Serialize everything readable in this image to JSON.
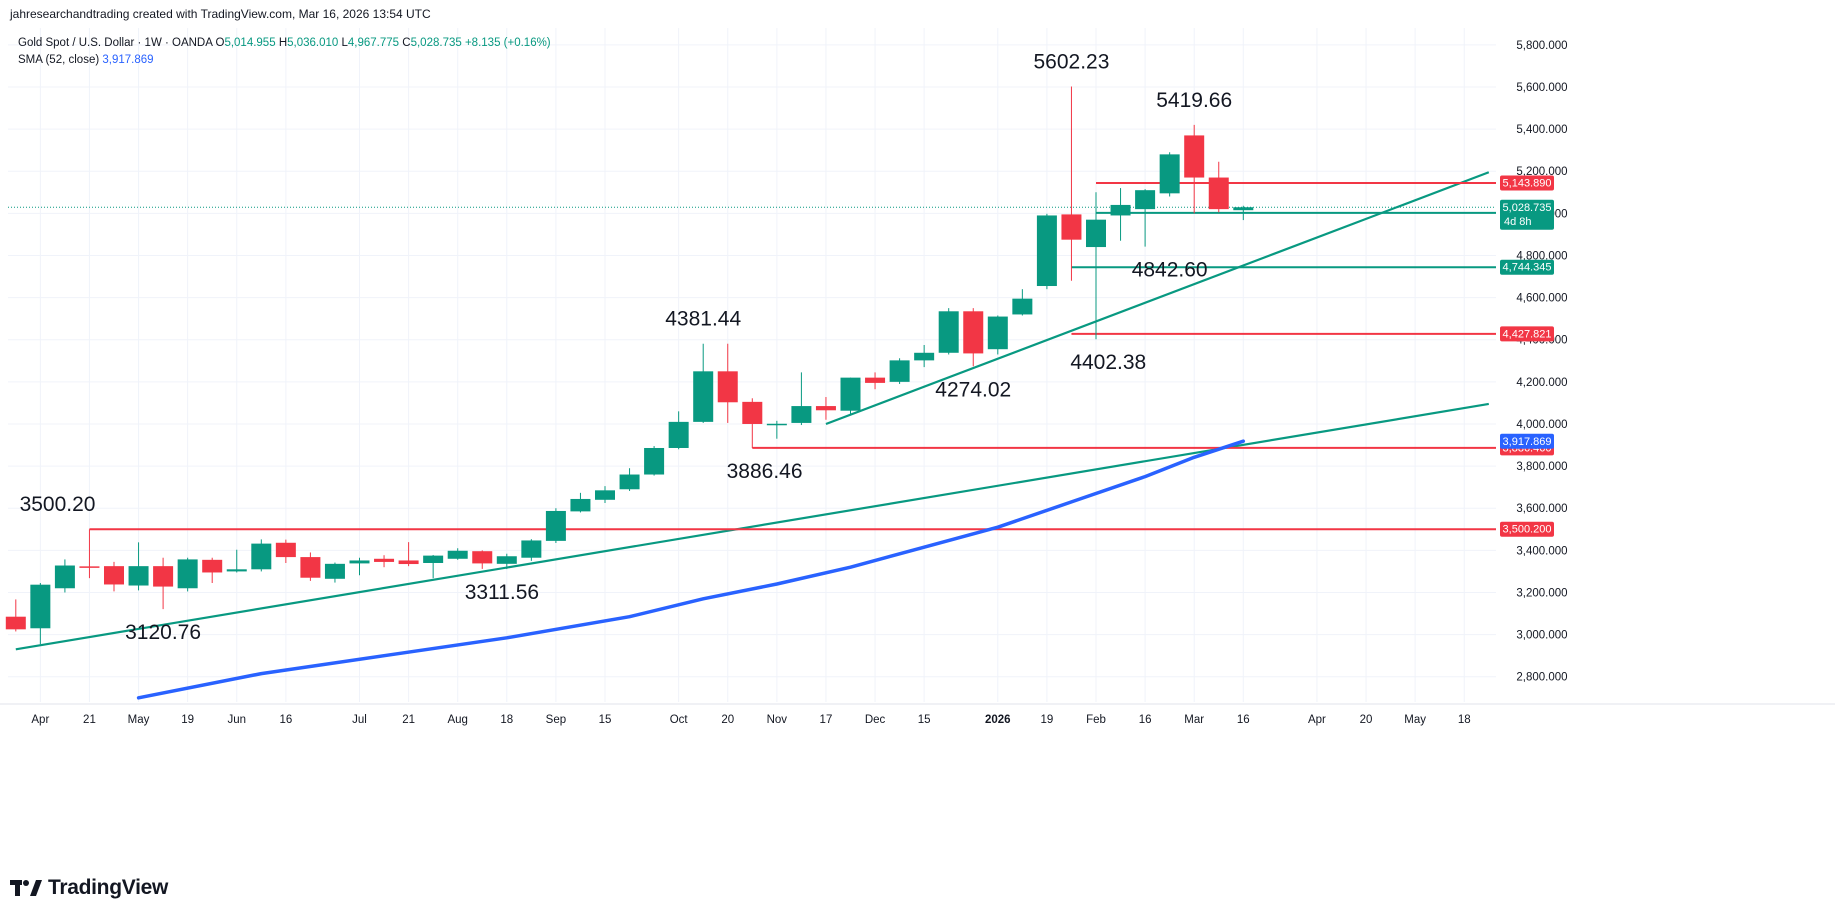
{
  "header": {
    "credit": "jahresearchandtrading created with TradingView.com, Mar 16, 2026 13:54 UTC"
  },
  "legend": {
    "symbol": "Gold Spot / U.S. Dollar · 1W · OANDA",
    "o_label": "O",
    "o": "5,014.955",
    "h_label": "H",
    "h": "5,036.010",
    "l_label": "L",
    "l": "4,967.775",
    "c_label": "C",
    "c": "5,028.735",
    "change": "+8.135 (+0.16%)",
    "sma_label": "SMA (52, close)",
    "sma": "3,917.869"
  },
  "brand": {
    "name": "TradingView"
  },
  "colors": {
    "up": "#089981",
    "down": "#f23645",
    "sma": "#2962ff",
    "trend": "#089981",
    "grid": "#f0f3fa",
    "text": "#131722"
  },
  "chart_data": {
    "type": "candlestick",
    "ylim": [
      2680,
      5880
    ],
    "y_ticks": [
      2800,
      3000,
      3200,
      3400,
      3600,
      3800,
      4000,
      4200,
      4400,
      4600,
      4800,
      5000,
      5200,
      5400,
      5600,
      5800
    ],
    "y_tick_labels": [
      "2,800.000",
      "3,000.000",
      "3,200.000",
      "3,400.000",
      "3,600.000",
      "3,800.000",
      "4,000.000",
      "4,200.000",
      "4,400.000",
      "4,600.000",
      "4,800.000",
      "5,000.000",
      "5,200.000",
      "5,400.000",
      "5,600.000",
      "5,800.000"
    ],
    "x_ticks": [
      {
        "label": "Apr",
        "week": 1
      },
      {
        "label": "21",
        "week": 3
      },
      {
        "label": "May",
        "week": 5
      },
      {
        "label": "19",
        "week": 7
      },
      {
        "label": "Jun",
        "week": 9
      },
      {
        "label": "16",
        "week": 11
      },
      {
        "label": "Jul",
        "week": 14
      },
      {
        "label": "21",
        "week": 16
      },
      {
        "label": "Aug",
        "week": 18
      },
      {
        "label": "18",
        "week": 20
      },
      {
        "label": "Sep",
        "week": 22
      },
      {
        "label": "15",
        "week": 24
      },
      {
        "label": "Oct",
        "week": 27
      },
      {
        "label": "20",
        "week": 29
      },
      {
        "label": "Nov",
        "week": 31
      },
      {
        "label": "17",
        "week": 33
      },
      {
        "label": "Dec",
        "week": 35
      },
      {
        "label": "15",
        "week": 37
      },
      {
        "label": "2026",
        "week": 40,
        "bold": true
      },
      {
        "label": "19",
        "week": 42
      },
      {
        "label": "Feb",
        "week": 44
      },
      {
        "label": "16",
        "week": 46
      },
      {
        "label": "Mar",
        "week": 48
      },
      {
        "label": "16",
        "week": 50
      },
      {
        "label": "Apr",
        "week": 53
      },
      {
        "label": "20",
        "week": 55
      },
      {
        "label": "May",
        "week": 57
      },
      {
        "label": "18",
        "week": 59
      }
    ],
    "candles": [
      {
        "week": 0,
        "o": 3085,
        "h": 3167,
        "l": 3015,
        "c": 3025
      },
      {
        "week": 1,
        "o": 3030,
        "h": 3245,
        "l": 2955,
        "c": 3237
      },
      {
        "week": 2,
        "o": 3220,
        "h": 3357,
        "l": 3200,
        "c": 3328
      },
      {
        "week": 3,
        "o": 3324,
        "h": 3500,
        "l": 3268,
        "c": 3318
      },
      {
        "week": 4,
        "o": 3325,
        "h": 3345,
        "l": 3205,
        "c": 3238
      },
      {
        "week": 5,
        "o": 3233,
        "h": 3438,
        "l": 3210,
        "c": 3325
      },
      {
        "week": 6,
        "o": 3325,
        "h": 3365,
        "l": 3121,
        "c": 3228
      },
      {
        "week": 7,
        "o": 3220,
        "h": 3365,
        "l": 3205,
        "c": 3357
      },
      {
        "week": 8,
        "o": 3355,
        "h": 3365,
        "l": 3245,
        "c": 3295
      },
      {
        "week": 9,
        "o": 3300,
        "h": 3403,
        "l": 3295,
        "c": 3310
      },
      {
        "week": 10,
        "o": 3310,
        "h": 3452,
        "l": 3300,
        "c": 3432
      },
      {
        "week": 11,
        "o": 3436,
        "h": 3451,
        "l": 3340,
        "c": 3368
      },
      {
        "week": 12,
        "o": 3368,
        "h": 3390,
        "l": 3255,
        "c": 3270
      },
      {
        "week": 13,
        "o": 3265,
        "h": 3342,
        "l": 3247,
        "c": 3336
      },
      {
        "week": 14,
        "o": 3338,
        "h": 3365,
        "l": 3282,
        "c": 3352
      },
      {
        "week": 15,
        "o": 3360,
        "h": 3377,
        "l": 3320,
        "c": 3345
      },
      {
        "week": 16,
        "o": 3352,
        "h": 3439,
        "l": 3325,
        "c": 3335
      },
      {
        "week": 17,
        "o": 3340,
        "h": 3378,
        "l": 3268,
        "c": 3375
      },
      {
        "week": 18,
        "o": 3360,
        "h": 3410,
        "l": 3355,
        "c": 3398
      },
      {
        "week": 19,
        "o": 3396,
        "h": 3400,
        "l": 3312,
        "c": 3338
      },
      {
        "week": 20,
        "o": 3336,
        "h": 3384,
        "l": 3311,
        "c": 3372
      },
      {
        "week": 21,
        "o": 3365,
        "h": 3453,
        "l": 3350,
        "c": 3447
      },
      {
        "week": 22,
        "o": 3445,
        "h": 3600,
        "l": 3435,
        "c": 3587
      },
      {
        "week": 23,
        "o": 3585,
        "h": 3673,
        "l": 3580,
        "c": 3644
      },
      {
        "week": 24,
        "o": 3640,
        "h": 3705,
        "l": 3625,
        "c": 3685
      },
      {
        "week": 25,
        "o": 3690,
        "h": 3790,
        "l": 3682,
        "c": 3760
      },
      {
        "week": 26,
        "o": 3760,
        "h": 3895,
        "l": 3755,
        "c": 3886
      },
      {
        "week": 27,
        "o": 3886,
        "h": 4060,
        "l": 3880,
        "c": 4010
      },
      {
        "week": 28,
        "o": 4010,
        "h": 4381,
        "l": 4005,
        "c": 4250
      },
      {
        "week": 29,
        "o": 4250,
        "h": 4381,
        "l": 4005,
        "c": 4103
      },
      {
        "week": 30,
        "o": 4105,
        "h": 4122,
        "l": 3886,
        "c": 4000
      },
      {
        "week": 31,
        "o": 3995,
        "h": 4015,
        "l": 3930,
        "c": 4001
      },
      {
        "week": 32,
        "o": 4005,
        "h": 4245,
        "l": 3995,
        "c": 4085
      },
      {
        "week": 33,
        "o": 4085,
        "h": 4128,
        "l": 4020,
        "c": 4065
      },
      {
        "week": 34,
        "o": 4063,
        "h": 4220,
        "l": 4040,
        "c": 4220
      },
      {
        "week": 35,
        "o": 4220,
        "h": 4245,
        "l": 4165,
        "c": 4195
      },
      {
        "week": 36,
        "o": 4200,
        "h": 4312,
        "l": 4190,
        "c": 4302
      },
      {
        "week": 37,
        "o": 4302,
        "h": 4375,
        "l": 4270,
        "c": 4338
      },
      {
        "week": 38,
        "o": 4338,
        "h": 4550,
        "l": 4330,
        "c": 4535
      },
      {
        "week": 39,
        "o": 4535,
        "h": 4550,
        "l": 4274,
        "c": 4335
      },
      {
        "week": 40,
        "o": 4355,
        "h": 4515,
        "l": 4330,
        "c": 4510
      },
      {
        "week": 41,
        "o": 4520,
        "h": 4640,
        "l": 4515,
        "c": 4595
      },
      {
        "week": 42,
        "o": 4655,
        "h": 4998,
        "l": 4640,
        "c": 4990
      },
      {
        "week": 43,
        "o": 4995,
        "h": 5602,
        "l": 4680,
        "c": 4875
      },
      {
        "week": 44,
        "o": 4840,
        "h": 5100,
        "l": 4402,
        "c": 4970
      },
      {
        "week": 45,
        "o": 4990,
        "h": 5120,
        "l": 4870,
        "c": 5040
      },
      {
        "week": 46,
        "o": 5020,
        "h": 5115,
        "l": 4842,
        "c": 5110
      },
      {
        "week": 47,
        "o": 5095,
        "h": 5290,
        "l": 5080,
        "c": 5280
      },
      {
        "week": 48,
        "o": 5370,
        "h": 5420,
        "l": 5000,
        "c": 5170
      },
      {
        "week": 49,
        "o": 5170,
        "h": 5245,
        "l": 5005,
        "c": 5020
      },
      {
        "week": 50,
        "o": 5015,
        "h": 5036,
        "l": 4968,
        "c": 5029
      }
    ],
    "sma52": [
      {
        "week": 5,
        "y": 2700
      },
      {
        "week": 10,
        "y": 2815
      },
      {
        "week": 15,
        "y": 2900
      },
      {
        "week": 20,
        "y": 2985
      },
      {
        "week": 25,
        "y": 3085
      },
      {
        "week": 28,
        "y": 3170
      },
      {
        "week": 31,
        "y": 3240
      },
      {
        "week": 34,
        "y": 3320
      },
      {
        "week": 37,
        "y": 3415
      },
      {
        "week": 40,
        "y": 3510
      },
      {
        "week": 43,
        "y": 3630
      },
      {
        "week": 46,
        "y": 3750
      },
      {
        "week": 48,
        "y": 3842
      },
      {
        "week": 50,
        "y": 3918
      }
    ],
    "trend_lines": [
      {
        "from": {
          "week": 0,
          "y": 2930
        },
        "to": {
          "week": 60,
          "y": 4095
        }
      },
      {
        "from": {
          "week": 33,
          "y": 4000
        },
        "to": {
          "week": 60,
          "y": 5195
        }
      }
    ],
    "h_levels": [
      {
        "y": 3500.2,
        "from_week": 3,
        "color": "#f23645",
        "label": "3,500.200"
      },
      {
        "y": 3886.46,
        "from_week": 30,
        "color": "#f23645",
        "label": "3,886.460"
      },
      {
        "y": 4427.821,
        "from_week": 43,
        "color": "#f23645",
        "label": "4,427.821"
      },
      {
        "y": 4744.345,
        "from_week": 43,
        "color": "#089981",
        "label": "4,744.345"
      },
      {
        "y": 5002.31,
        "from_week": 44,
        "color": "#089981",
        "label": "5,002.310"
      },
      {
        "y": 5143.89,
        "from_week": 44,
        "color": "#f23645",
        "label": "5,143.890"
      }
    ],
    "price_tags": [
      {
        "y": 5028.735,
        "color": "#089981",
        "label": "5,028.735",
        "sub": "4d 8h"
      },
      {
        "y": 3917.869,
        "color": "#2962ff",
        "label": "3,917.869"
      }
    ],
    "current_price": 5028.735,
    "annotations": [
      {
        "text": "3500.20",
        "week": 1.7,
        "y": 3500.2
      },
      {
        "text": "3120.76",
        "week": 6,
        "y": 3120.76
      },
      {
        "text": "3311.56",
        "week": 19.8,
        "y": 3311.56
      },
      {
        "text": "4381.44",
        "week": 28,
        "y": 4381.44
      },
      {
        "text": "3886.46",
        "week": 30.5,
        "y": 3886.46
      },
      {
        "text": "4274.02",
        "week": 39,
        "y": 4274.02
      },
      {
        "text": "5602.23",
        "week": 43,
        "y": 5602.23
      },
      {
        "text": "4402.38",
        "week": 44.5,
        "y": 4402.38
      },
      {
        "text": "4842.60",
        "week": 47,
        "y": 4842.6
      },
      {
        "text": "5419.66",
        "week": 48,
        "y": 5419.66
      }
    ]
  }
}
